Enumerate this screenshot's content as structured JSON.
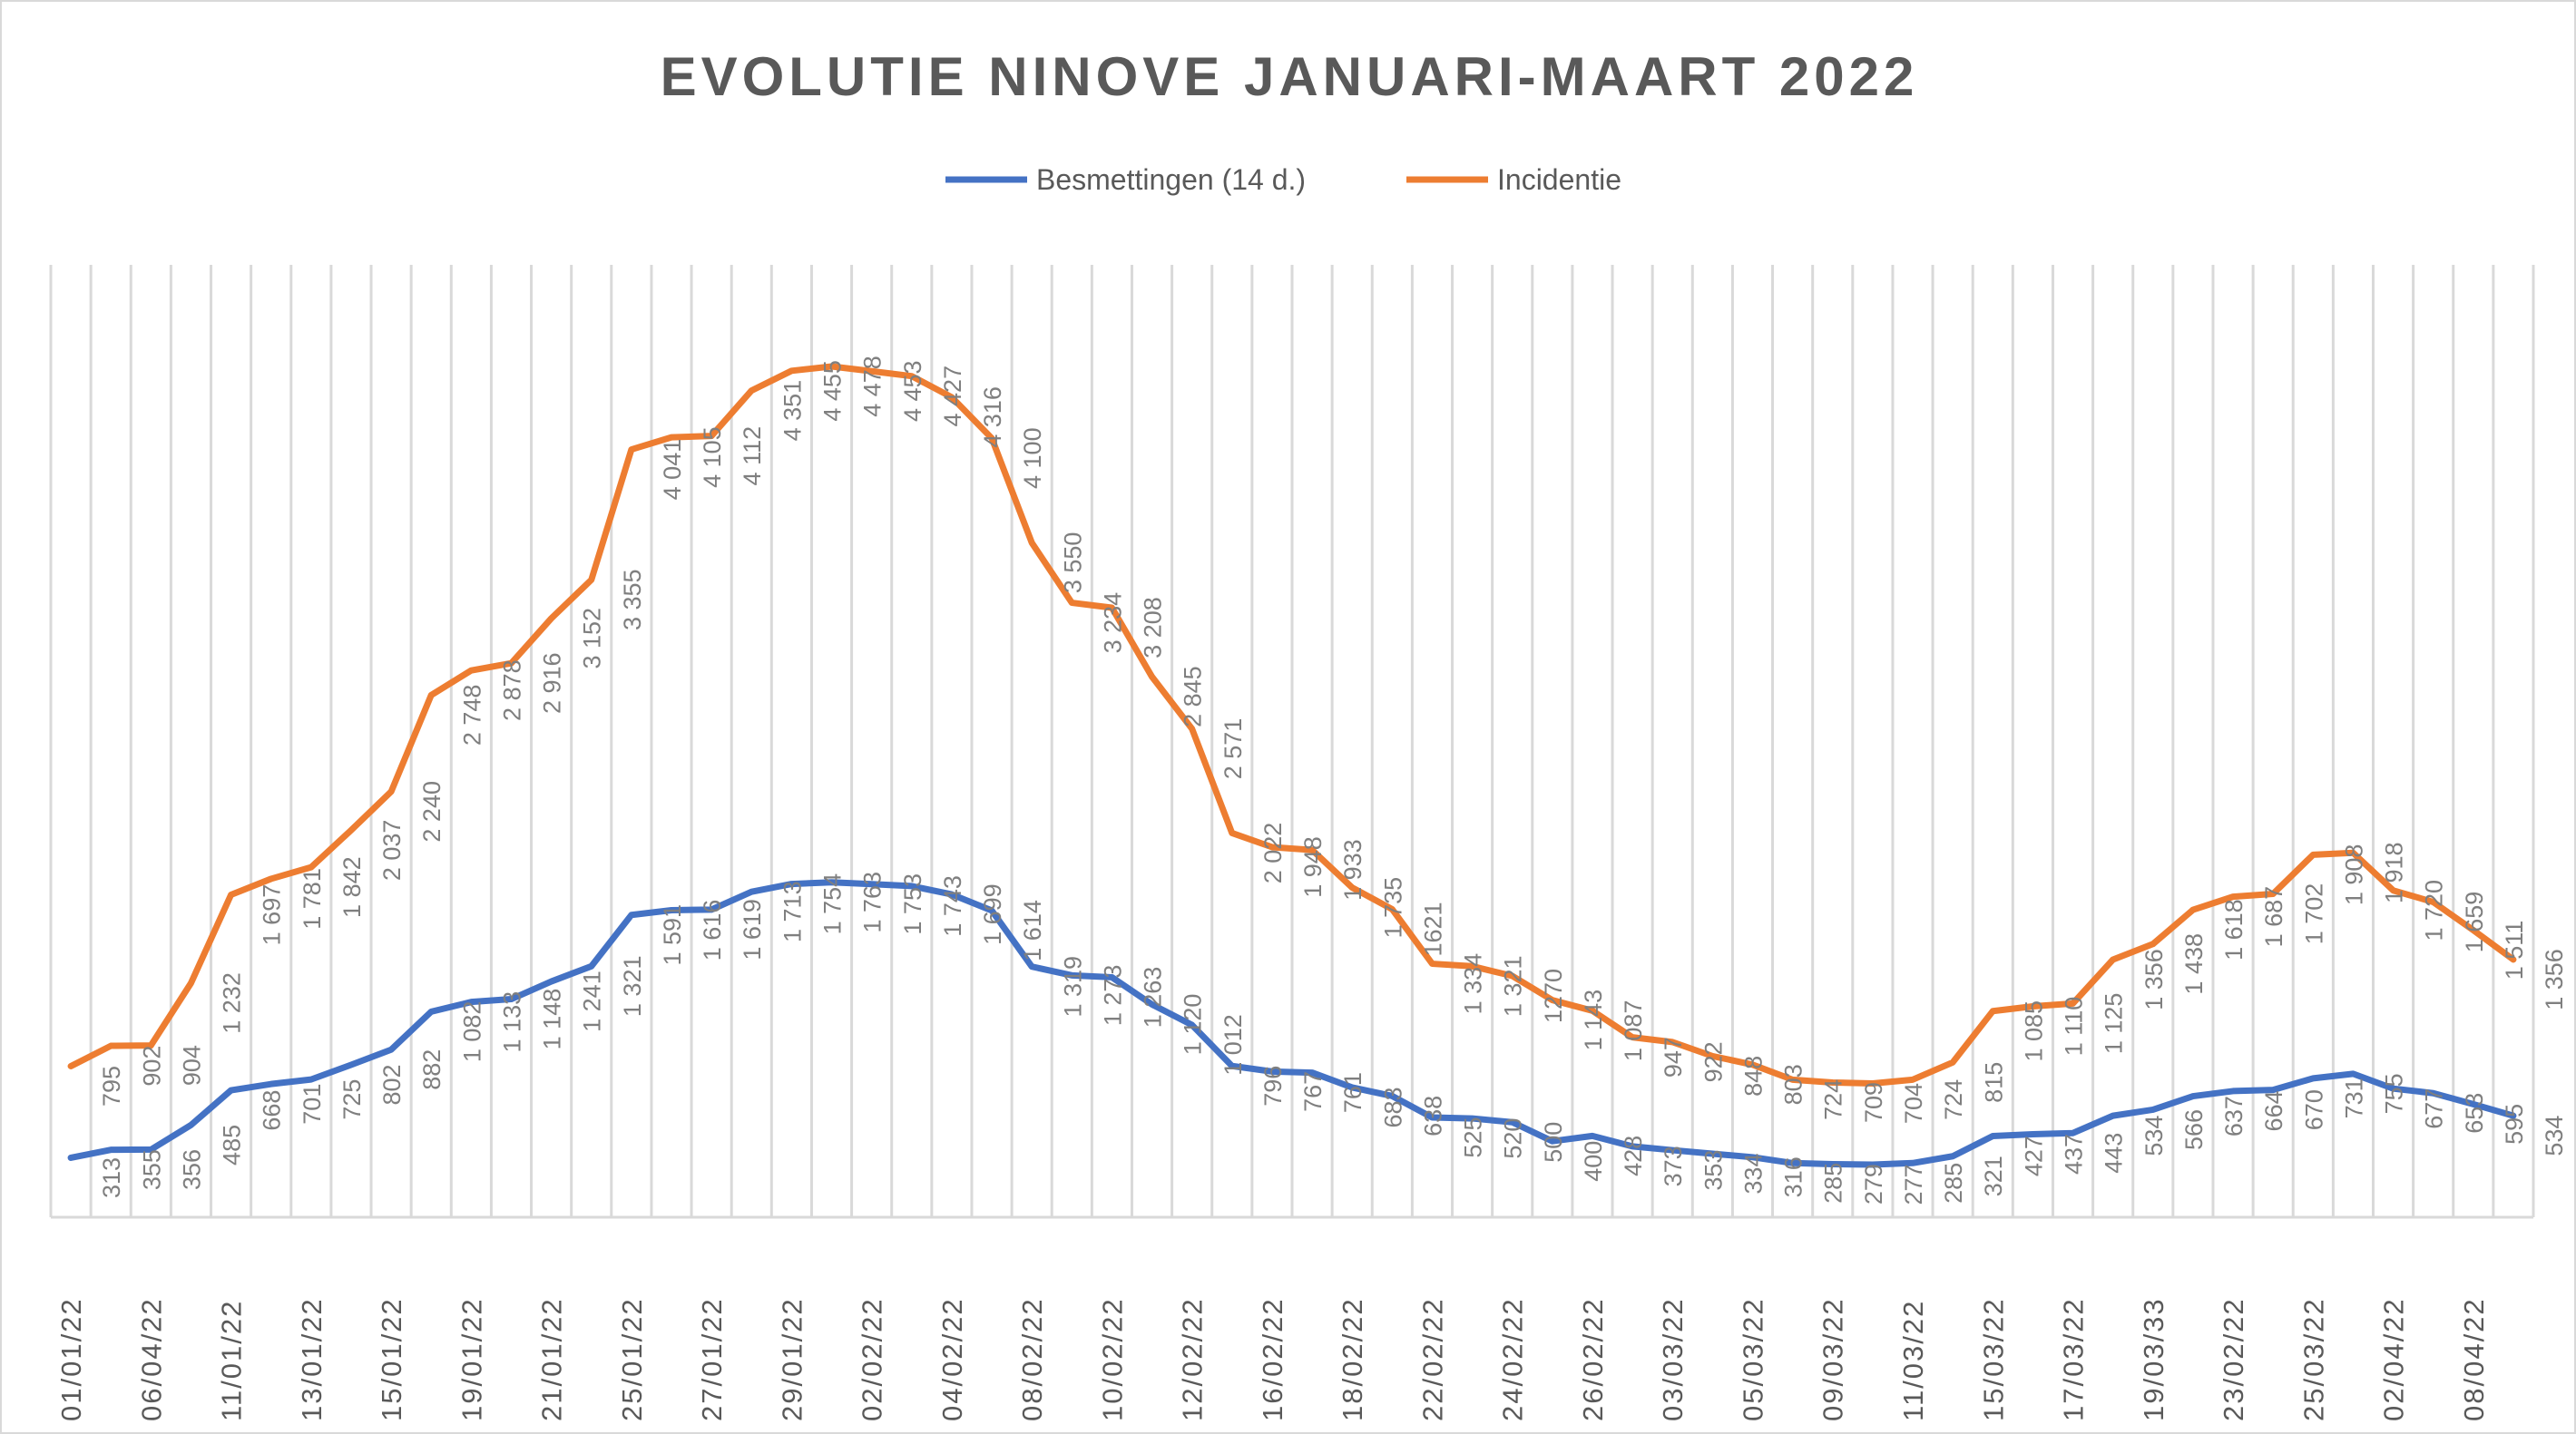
{
  "chart_data": {
    "type": "line",
    "title": "EVOLUTIE NINOVE JANUARI-MAART 2022",
    "xlabel": "",
    "ylabel": "",
    "ylim": [
      0,
      4500
    ],
    "grid": "vertical",
    "legend_position": "top",
    "x_tick_labels": [
      "01/01/22",
      "06/04/22",
      "11/01/22",
      "13/01/22",
      "15/01/22",
      "19/01/22",
      "21/01/22",
      "25/01/22",
      "27/01/22",
      "29/01/22",
      "02/02/22",
      "04/02/22",
      "08/02/22",
      "10/02/22",
      "12/02/22",
      "16/02/22",
      "18/02/22",
      "22/02/22",
      "24/02/22",
      "26/02/22",
      "03/03/22",
      "05/03/22",
      "09/03/22",
      "11/03/22",
      "15/03/22",
      "17/03/22",
      "19/03/33",
      "23/02/22",
      "25/03/22",
      "02/04/22",
      "08/04/22"
    ],
    "series": [
      {
        "name": "Besmettingen (14 d.)",
        "color": "#4472c4",
        "values": [
          313,
          355,
          356,
          485,
          668,
          701,
          725,
          802,
          882,
          1082,
          1133,
          1148,
          1241,
          1321,
          1591,
          1616,
          1619,
          1713,
          1754,
          1763,
          1753,
          1743,
          1699,
          1614,
          1319,
          1273,
          1263,
          1120,
          1012,
          796,
          767,
          761,
          683,
          638,
          525,
          520,
          500,
          400,
          428,
          373,
          353,
          334,
          316,
          285,
          279,
          277,
          285,
          321,
          427,
          437,
          443,
          534,
          566,
          637,
          664,
          670,
          731,
          755,
          677,
          653,
          595,
          534
        ]
      },
      {
        "name": "Incidentie",
        "color": "#ed7d31",
        "values": [
          795,
          902,
          904,
          1232,
          1697,
          1781,
          1842,
          2037,
          2240,
          2748,
          2878,
          2916,
          3152,
          3355,
          4041,
          4105,
          4112,
          4351,
          4455,
          4478,
          4453,
          4427,
          4316,
          4100,
          3550,
          3234,
          3208,
          2845,
          2571,
          2022,
          1948,
          1933,
          1735,
          1621,
          1334,
          1321,
          1270,
          1143,
          1087,
          947,
          922,
          848,
          803,
          724,
          709,
          704,
          724,
          815,
          1085,
          1110,
          1125,
          1356,
          1438,
          1618,
          1687,
          1702,
          1908,
          1918,
          1720,
          1659,
          1511,
          1356
        ]
      }
    ],
    "data_labels_display": [
      [
        "313",
        "355",
        "356",
        "485",
        "668",
        "701",
        "725",
        "802",
        "882",
        "1 082",
        "1 133",
        "1 148",
        "1 241",
        "1 321",
        "1 591",
        "1 616",
        "1 619",
        "1 713",
        "1 754",
        "1 763",
        "1 753",
        "1 743",
        "1 699",
        "1 614",
        "1 319",
        "1 273",
        "1 263",
        "1 120",
        "1 012",
        "796",
        "767",
        "761",
        "683",
        "638",
        "525",
        "520",
        "500",
        "400",
        "428",
        "373",
        "353",
        "334",
        "316",
        "285",
        "279",
        "277",
        "285",
        "321",
        "427",
        "437",
        "443",
        "534",
        "566",
        "637",
        "664",
        "670",
        "731",
        "755",
        "677",
        "653",
        "595",
        "534"
      ],
      [
        "795",
        "902",
        "904",
        "1 232",
        "1 697",
        "1 781",
        "1 842",
        "2 037",
        "2 240",
        "2 748",
        "2 878",
        "2 916",
        "3 152",
        "3 355",
        "4 041",
        "4 105",
        "4 112",
        "4 351",
        "4 455",
        "4 478",
        "4 453",
        "4 427",
        "4 316",
        "4 100",
        "3 550",
        "3 234",
        "3 208",
        "2 845",
        "2 571",
        "2 022",
        "1 948",
        "1 933",
        "1 735",
        "1621",
        "1 334",
        "1 321",
        "1270",
        "1 143",
        "1 087",
        "947",
        "922",
        "848",
        "803",
        "724",
        "709",
        "704",
        "724",
        "815",
        "1 085",
        "1 110",
        "1 125",
        "1 356",
        "1 438",
        "1 618",
        "1 687",
        "1 702",
        "1 908",
        "1 918",
        "1 720",
        "1 659",
        "1 511",
        "1 356"
      ]
    ]
  }
}
